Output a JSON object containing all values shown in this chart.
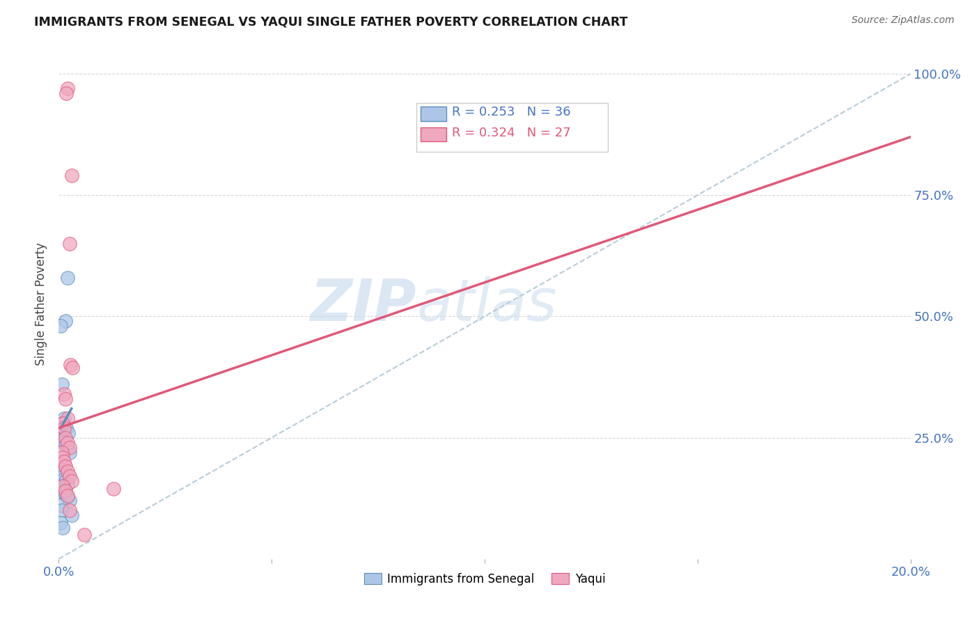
{
  "title": "IMMIGRANTS FROM SENEGAL VS YAQUI SINGLE FATHER POVERTY CORRELATION CHART",
  "source": "Source: ZipAtlas.com",
  "ylabel": "Single Father Poverty",
  "legend1_r": "R = 0.253",
  "legend1_n": "N = 36",
  "legend2_r": "R = 0.324",
  "legend2_n": "N = 27",
  "legend1_label": "Immigrants from Senegal",
  "legend2_label": "Yaqui",
  "blue_color": "#adc6e8",
  "pink_color": "#f0a8c0",
  "blue_line_color": "#5b8db8",
  "pink_line_color": "#e05878",
  "dashed_line_color": "#b8ccd8",
  "watermark_zip": "ZIP",
  "watermark_atlas": "atlas",
  "blue_scatter_x": [
    0.002,
    0.0015,
    0.0005,
    0.0008,
    0.0012,
    0.001,
    0.0018,
    0.0022,
    0.0005,
    0.0008,
    0.001,
    0.0012,
    0.0015,
    0.002,
    0.0025,
    0.0005,
    0.0008,
    0.001,
    0.0012,
    0.0005,
    0.0008,
    0.001,
    0.0012,
    0.0015,
    0.002,
    0.0005,
    0.0008,
    0.001,
    0.0015,
    0.002,
    0.0025,
    0.0005,
    0.0008,
    0.003,
    0.0005,
    0.001
  ],
  "blue_scatter_y": [
    0.58,
    0.49,
    0.48,
    0.36,
    0.29,
    0.28,
    0.27,
    0.26,
    0.25,
    0.248,
    0.245,
    0.24,
    0.235,
    0.23,
    0.22,
    0.2,
    0.195,
    0.19,
    0.185,
    0.18,
    0.175,
    0.17,
    0.165,
    0.16,
    0.155,
    0.148,
    0.142,
    0.138,
    0.133,
    0.128,
    0.12,
    0.11,
    0.1,
    0.09,
    0.075,
    0.065
  ],
  "pink_scatter_x": [
    0.002,
    0.0018,
    0.003,
    0.0025,
    0.0028,
    0.0032,
    0.0012,
    0.0015,
    0.002,
    0.001,
    0.0012,
    0.0015,
    0.002,
    0.0025,
    0.0008,
    0.001,
    0.0012,
    0.0015,
    0.002,
    0.0025,
    0.003,
    0.001,
    0.0015,
    0.002,
    0.0025,
    0.0128,
    0.006
  ],
  "pink_scatter_y": [
    0.97,
    0.96,
    0.79,
    0.65,
    0.4,
    0.395,
    0.34,
    0.33,
    0.29,
    0.28,
    0.27,
    0.25,
    0.24,
    0.23,
    0.22,
    0.21,
    0.2,
    0.19,
    0.18,
    0.17,
    0.16,
    0.15,
    0.14,
    0.13,
    0.1,
    0.145,
    0.05
  ],
  "blue_line_x": [
    0.0005,
    0.003
  ],
  "blue_line_y": [
    0.27,
    0.31
  ],
  "pink_line_x": [
    0.0,
    0.2
  ],
  "pink_line_y": [
    0.27,
    0.87
  ],
  "dashed_line_x": [
    0.0,
    0.2
  ],
  "dashed_line_y": [
    0.0,
    1.0
  ],
  "xlim": [
    0.0,
    0.2
  ],
  "ylim": [
    0.0,
    1.05
  ],
  "ytick_positions": [
    0.25,
    0.5,
    0.75,
    1.0
  ],
  "ytick_labels": [
    "25.0%",
    "50.0%",
    "75.0%",
    "100.0%"
  ],
  "xtick_positions": [
    0.0,
    0.05,
    0.1,
    0.15,
    0.2
  ],
  "xtick_labels_show": [
    "0.0%",
    "",
    "",
    "",
    "20.0%"
  ],
  "background_color": "#ffffff",
  "grid_color": "#d8d8d8",
  "tick_label_color": "#4472c4",
  "title_color": "#1a1a1a",
  "source_color": "#666666",
  "ylabel_color": "#444444"
}
